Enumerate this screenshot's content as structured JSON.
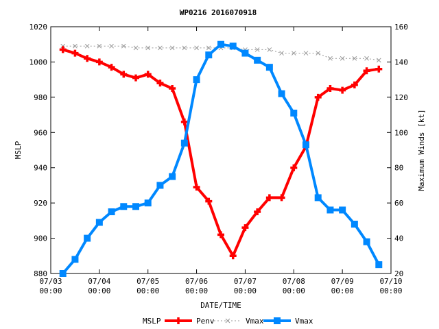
{
  "chart_data": {
    "type": "line",
    "title": "WP0216 2016070918",
    "xlabel": "DATE/TIME",
    "ylabel_left": "MSLP",
    "ylabel_right": "Maximum Winds [kt]",
    "ylim_left": [
      880,
      1020
    ],
    "ylim_right": [
      20,
      160
    ],
    "y_ticks_left": [
      880,
      900,
      920,
      940,
      960,
      980,
      1000,
      1020
    ],
    "y_ticks_right": [
      20,
      40,
      60,
      80,
      100,
      120,
      140,
      160
    ],
    "x_ticks": [
      {
        "t": 0,
        "line1": "07/03",
        "line2": "00:00"
      },
      {
        "t": 24,
        "line1": "07/04",
        "line2": "00:00"
      },
      {
        "t": 48,
        "line1": "07/05",
        "line2": "00:00"
      },
      {
        "t": 72,
        "line1": "07/06",
        "line2": "00:00"
      },
      {
        "t": 96,
        "line1": "07/07",
        "line2": "00:00"
      },
      {
        "t": 120,
        "line1": "07/08",
        "line2": "00:00"
      },
      {
        "t": 144,
        "line1": "07/09",
        "line2": "00:00"
      },
      {
        "t": 168,
        "line1": "07/10",
        "line2": "00:00"
      }
    ],
    "x_range_hours": [
      0,
      168
    ],
    "grid": false,
    "legend_position": "bottom",
    "legend_first_label": "MSLP",
    "series": [
      {
        "name": "Penv",
        "axis": "left",
        "color": "#ff0000",
        "marker": "plus",
        "x": [
          6,
          12,
          18,
          24,
          30,
          36,
          42,
          48,
          54,
          60,
          66,
          72,
          78,
          84,
          90,
          96,
          102,
          108,
          114,
          120,
          126,
          132,
          138,
          144,
          150,
          156,
          162
        ],
        "values": [
          1007,
          1005,
          1002,
          1000,
          997,
          993,
          991,
          993,
          988,
          985,
          966,
          929,
          921,
          902,
          890,
          906,
          915,
          923,
          923,
          940,
          952,
          980,
          985,
          984,
          987,
          995,
          996
        ]
      },
      {
        "name": "Vmax",
        "axis": "right",
        "color": "#0088ff",
        "marker": "square",
        "x": [
          6,
          12,
          18,
          24,
          30,
          36,
          42,
          48,
          54,
          60,
          66,
          72,
          78,
          84,
          90,
          96,
          102,
          108,
          114,
          120,
          126,
          132,
          138,
          144,
          150,
          156,
          162
        ],
        "values": [
          20,
          28,
          40,
          49,
          55,
          58,
          58,
          60,
          70,
          75,
          94,
          130,
          144,
          150,
          149,
          145,
          141,
          137,
          122,
          111,
          93,
          63,
          56,
          56,
          48,
          38,
          25
        ]
      },
      {
        "name": "Vmax",
        "axis": "left",
        "color": "#999999",
        "marker": "cross",
        "dashed": true,
        "x": [
          6,
          12,
          18,
          24,
          30,
          36,
          42,
          48,
          54,
          60,
          66,
          72,
          78,
          84,
          90,
          96,
          102,
          108,
          114,
          120,
          126,
          132,
          138,
          144,
          150,
          156,
          162
        ],
        "values": [
          1009,
          1009,
          1009,
          1009,
          1009,
          1009,
          1008,
          1008,
          1008,
          1008,
          1008,
          1008,
          1008,
          1008,
          1008,
          1007,
          1007,
          1007,
          1005,
          1005,
          1005,
          1005,
          1002,
          1002,
          1002,
          1002,
          1001
        ]
      }
    ]
  }
}
